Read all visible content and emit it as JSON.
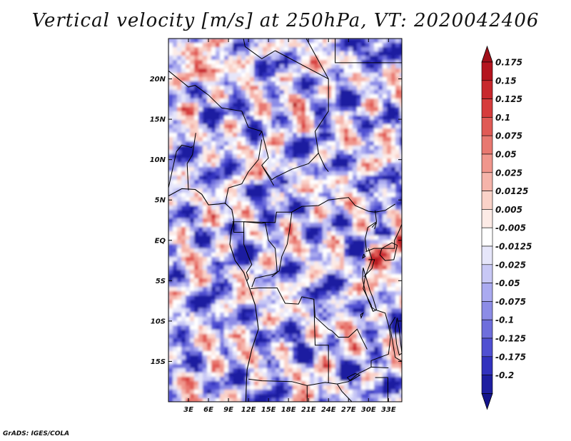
{
  "title": "Vertical velocity [m/s] at 250hPa, VT: 2020042406",
  "credit": "GrADS: IGES/COLA",
  "map": {
    "lat_range": [
      -20,
      25
    ],
    "lon_range": [
      0,
      35
    ],
    "lat_ticks": [
      {
        "value": 20,
        "label": "20N"
      },
      {
        "value": 15,
        "label": "15N"
      },
      {
        "value": 10,
        "label": "10N"
      },
      {
        "value": 5,
        "label": "5N"
      },
      {
        "value": 0,
        "label": "EQ"
      },
      {
        "value": -5,
        "label": "5S"
      },
      {
        "value": -10,
        "label": "10S"
      },
      {
        "value": -15,
        "label": "15S"
      }
    ],
    "lon_ticks": [
      {
        "value": 3,
        "label": "3E"
      },
      {
        "value": 6,
        "label": "6E"
      },
      {
        "value": 9,
        "label": "9E"
      },
      {
        "value": 12,
        "label": "12E"
      },
      {
        "value": 15,
        "label": "15E"
      },
      {
        "value": 18,
        "label": "18E"
      },
      {
        "value": 21,
        "label": "21E"
      },
      {
        "value": 24,
        "label": "24E"
      },
      {
        "value": 27,
        "label": "27E"
      },
      {
        "value": 30,
        "label": "30E"
      },
      {
        "value": 33,
        "label": "33E"
      }
    ],
    "field_seed": 20200424
  },
  "colorbar": {
    "levels": [
      {
        "label": "0.175",
        "color": "#b4141e"
      },
      {
        "label": "0.15",
        "color": "#c8282d"
      },
      {
        "label": "0.125",
        "color": "#d63c3c"
      },
      {
        "label": "0.1",
        "color": "#e05a55"
      },
      {
        "label": "0.075",
        "color": "#e87870"
      },
      {
        "label": "0.05",
        "color": "#f0968c"
      },
      {
        "label": "0.025",
        "color": "#f5b4aa"
      },
      {
        "label": "0.0125",
        "color": "#fad2c8"
      },
      {
        "label": "0.005",
        "color": "#fdebe6"
      },
      {
        "label": "-0.005",
        "color": "#ffffff"
      },
      {
        "label": "-0.0125",
        "color": "#e6e6fa"
      },
      {
        "label": "-0.025",
        "color": "#c8c8f5"
      },
      {
        "label": "-0.05",
        "color": "#aaaaf0"
      },
      {
        "label": "-0.075",
        "color": "#8c8ce6"
      },
      {
        "label": "-0.1",
        "color": "#6e6edc"
      },
      {
        "label": "-0.125",
        "color": "#5050d2"
      },
      {
        "label": "-0.175",
        "color": "#3232be"
      },
      {
        "label": "-0.2",
        "color": "#1e1ea0"
      }
    ],
    "top_color": "#a00f19",
    "bottom_color": "#14148c"
  }
}
